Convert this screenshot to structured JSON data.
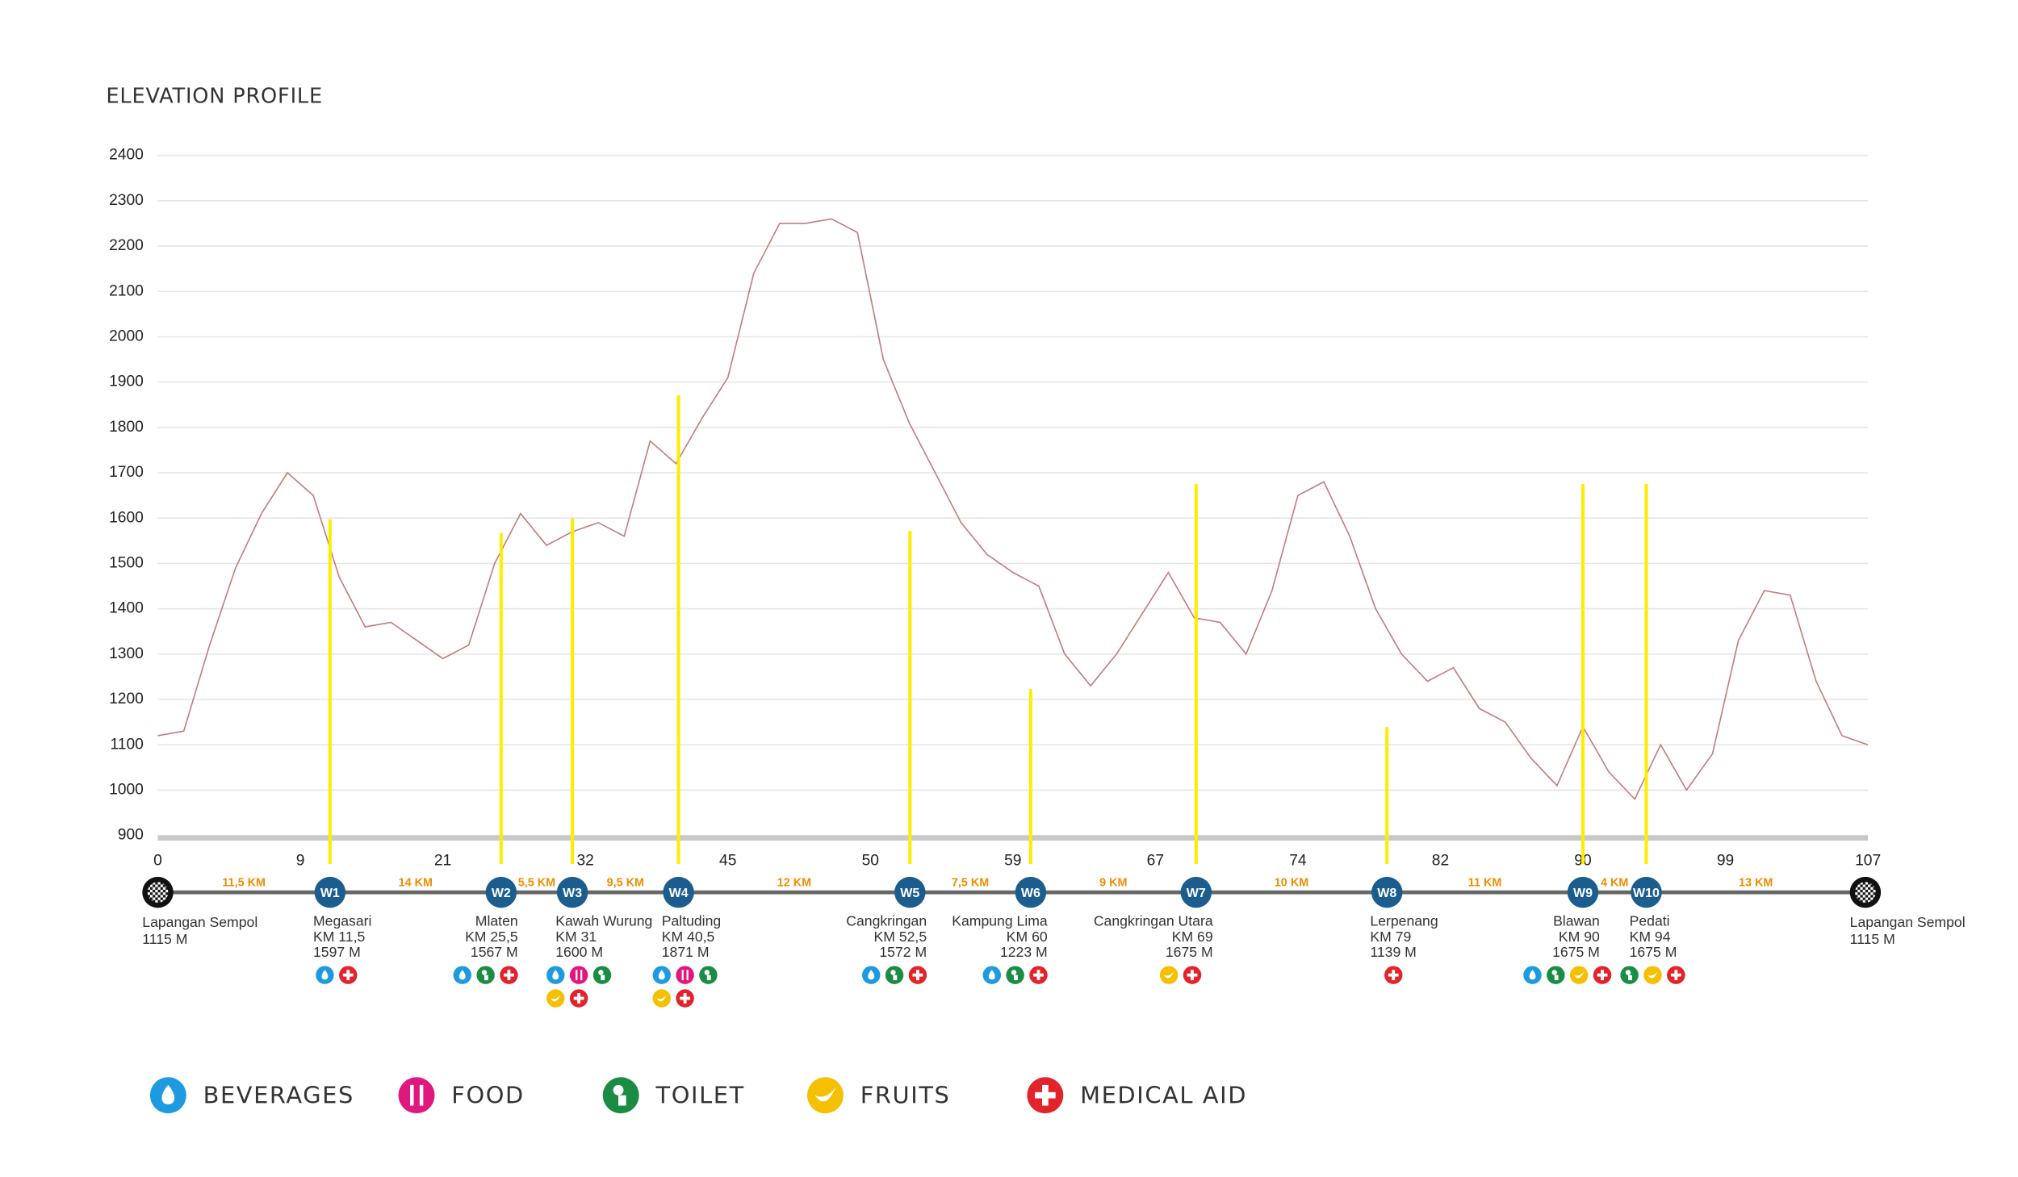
{
  "chart_data": {
    "type": "line",
    "title": "ELEVATION PROFILE",
    "color": "#c47a7a",
    "values": [
      1120,
      1130,
      1320,
      1490,
      1610,
      1700,
      1650,
      1470,
      1360,
      1370,
      1330,
      1290,
      1320,
      1500,
      1610,
      1540,
      1570,
      1590,
      1560,
      1770,
      1720,
      1820,
      1910,
      2140,
      2250,
      2250,
      2260,
      2230,
      1950,
      1810,
      1700,
      1590,
      1520,
      1480,
      1450,
      1300,
      1230,
      1300,
      1390,
      1480,
      1380,
      1370,
      1300,
      1440,
      1650,
      1680,
      1560,
      1400,
      1300,
      1240,
      1270,
      1180,
      1150,
      1070,
      1010,
      1140,
      1040,
      980,
      1100,
      1000,
      1080,
      1330,
      1440,
      1430,
      1240,
      1120,
      1100
    ],
    "ylim": [
      900,
      2400
    ],
    "yticks": [
      900,
      1000,
      1100,
      1200,
      1300,
      1400,
      1500,
      1600,
      1700,
      1800,
      1900,
      2000,
      2100,
      2200,
      2300,
      2400
    ],
    "xticks": [
      0,
      9,
      21,
      32,
      45,
      50,
      59,
      67,
      74,
      82,
      90,
      99,
      107
    ],
    "grid": true,
    "marker_color": "#ffec00",
    "waypoint_color": "#1c5d8f",
    "start": {
      "name": "Lapangan Sempol",
      "elevation": 1115,
      "elevation_label": "1115 M"
    },
    "finish": {
      "name": "Lapangan Sempol",
      "elevation": 1115,
      "elevation_label": "1115 M"
    },
    "segments": [
      "11,5 KM",
      "14 KM",
      "5,5 KM",
      "9,5 KM",
      "12 KM",
      "7,5 KM",
      "9 KM",
      "10 KM",
      "11 KM",
      "4 KM",
      "13 KM"
    ],
    "waypoints": [
      {
        "code": "W1",
        "name": "Megasari",
        "km": 11.5,
        "km_label": "KM 11,5",
        "elevation": 1597,
        "elevation_label": "1597 M",
        "services": [
          0,
          4
        ]
      },
      {
        "code": "W2",
        "name": "Mlaten",
        "km": 25.5,
        "km_label": "KM 25,5",
        "elevation": 1567,
        "elevation_label": "1567 M",
        "services": [
          0,
          2,
          4
        ]
      },
      {
        "code": "W3",
        "name": "Kawah Wurung",
        "km": 31,
        "km_label": "KM 31",
        "elevation": 1600,
        "elevation_label": "1600 M",
        "services": [
          0,
          1,
          2,
          3,
          4
        ]
      },
      {
        "code": "W4",
        "name": "Paltuding",
        "km": 40.5,
        "km_label": "KM 40,5",
        "elevation": 1871,
        "elevation_label": "1871 M",
        "services": [
          0,
          1,
          2,
          3,
          4
        ]
      },
      {
        "code": "W5",
        "name": "Cangkringan",
        "km": 52.5,
        "km_label": "KM 52,5",
        "elevation": 1572,
        "elevation_label": "1572 M",
        "services": [
          0,
          2,
          4
        ]
      },
      {
        "code": "W6",
        "name": "Kampung Lima",
        "km": 60,
        "km_label": "KM 60",
        "elevation": 1223,
        "elevation_label": "1223 M",
        "services": [
          0,
          2,
          4
        ]
      },
      {
        "code": "W7",
        "name": "Cangkringan Utara",
        "km": 69,
        "km_label": "KM 69",
        "elevation": 1675,
        "elevation_label": "1675 M",
        "services": [
          3,
          4
        ]
      },
      {
        "code": "W8",
        "name": "Lerpenang",
        "km": 79,
        "km_label": "KM 79",
        "elevation": 1139,
        "elevation_label": "1139 M",
        "services": [
          4
        ]
      },
      {
        "code": "W9",
        "name": "Blawan",
        "km": 90,
        "km_label": "KM 90",
        "elevation": 1675,
        "elevation_label": "1675 M",
        "services": [
          0,
          2,
          3,
          4
        ]
      },
      {
        "code": "W10",
        "name": "Pedati",
        "km": 94,
        "km_label": "KM 94",
        "elevation": 1675,
        "elevation_label": "1675 M",
        "services": [
          2,
          3,
          4
        ]
      }
    ],
    "legend": [
      {
        "name": "BEVERAGES",
        "color": "#1e9be0"
      },
      {
        "name": "FOOD",
        "color": "#e0177f"
      },
      {
        "name": "TOILET",
        "color": "#1a8c44"
      },
      {
        "name": "FRUITS",
        "color": "#f5c000"
      },
      {
        "name": "MEDICAL AID",
        "color": "#e3232b"
      }
    ]
  }
}
